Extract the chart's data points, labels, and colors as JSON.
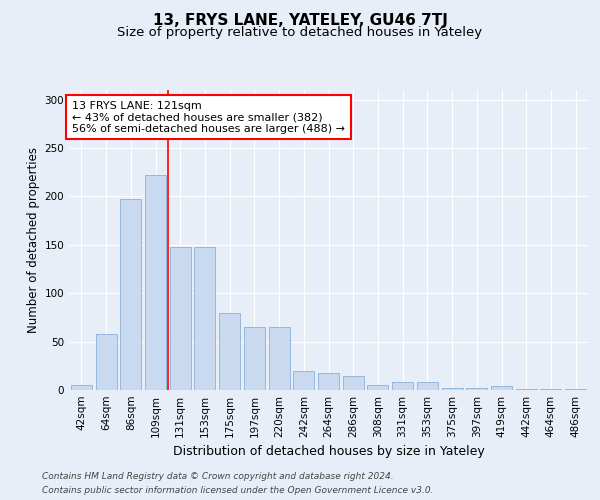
{
  "title1": "13, FRYS LANE, YATELEY, GU46 7TJ",
  "title2": "Size of property relative to detached houses in Yateley",
  "xlabel": "Distribution of detached houses by size in Yateley",
  "ylabel": "Number of detached properties",
  "categories": [
    "42sqm",
    "64sqm",
    "86sqm",
    "109sqm",
    "131sqm",
    "153sqm",
    "175sqm",
    "197sqm",
    "220sqm",
    "242sqm",
    "264sqm",
    "286sqm",
    "308sqm",
    "331sqm",
    "353sqm",
    "375sqm",
    "397sqm",
    "419sqm",
    "442sqm",
    "464sqm",
    "486sqm"
  ],
  "values": [
    5,
    58,
    197,
    222,
    148,
    148,
    80,
    65,
    65,
    20,
    18,
    14,
    5,
    8,
    8,
    2,
    2,
    4,
    1,
    1,
    1
  ],
  "bar_color": "#c8d9f0",
  "bar_edge_color": "#8ab0d8",
  "vline_x_index": 3.5,
  "vline_color": "red",
  "bg_color": "#e8eef8",
  "plot_bg_color": "#e8eef8",
  "annotation_text": "13 FRYS LANE: 121sqm\n← 43% of detached houses are smaller (382)\n56% of semi-detached houses are larger (488) →",
  "annotation_box_color": "white",
  "annotation_box_edge": "red",
  "footer1": "Contains HM Land Registry data © Crown copyright and database right 2024.",
  "footer2": "Contains public sector information licensed under the Open Government Licence v3.0.",
  "ylim": [
    0,
    310
  ],
  "title1_fontsize": 11,
  "title2_fontsize": 9.5,
  "xlabel_fontsize": 9,
  "ylabel_fontsize": 8.5,
  "tick_fontsize": 7.5,
  "annotation_fontsize": 8,
  "footer_fontsize": 6.5
}
